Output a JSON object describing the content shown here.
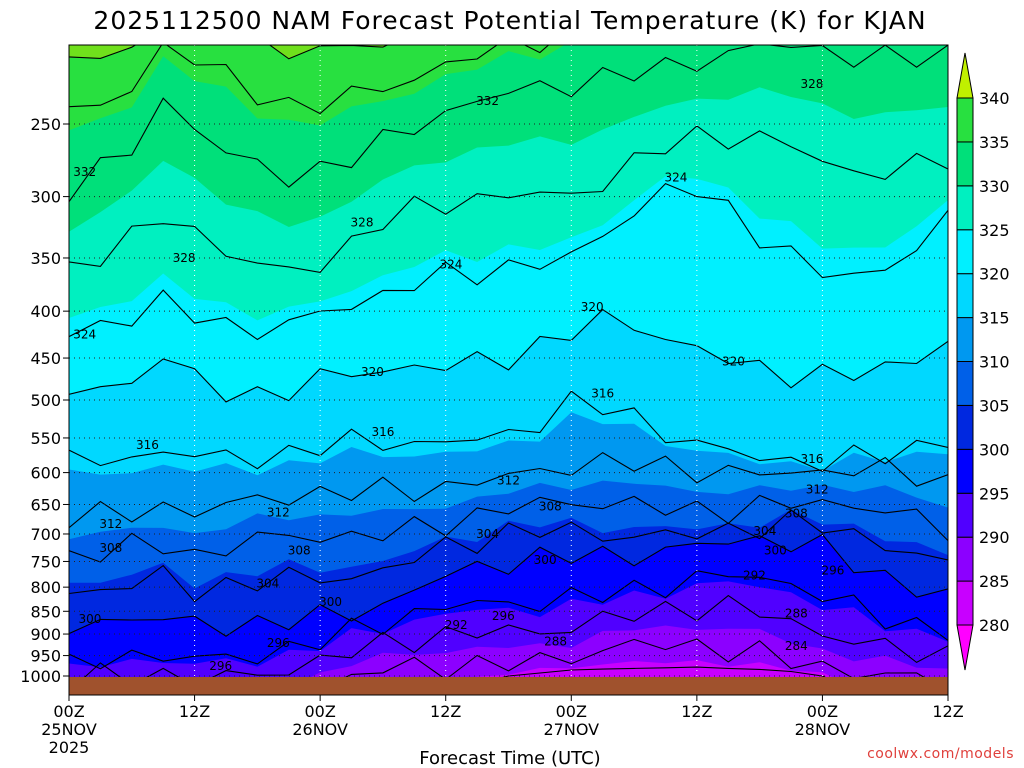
{
  "title": "2025112500 NAM Forecast Potential Temperature (K) for KJAN",
  "credit": "coolwx.com/models",
  "chart_data": {
    "type": "heatmap",
    "title": "2025112500 NAM Forecast Potential Temperature (K) for KJAN",
    "xlabel": "Forecast Time (UTC)",
    "ylabel": "",
    "x_ticks": [
      {
        "hours": 0,
        "line1": "00Z",
        "line2": "25NOV",
        "line3": "2025"
      },
      {
        "hours": 12,
        "line1": "12Z",
        "line2": "",
        "line3": ""
      },
      {
        "hours": 24,
        "line1": "00Z",
        "line2": "26NOV",
        "line3": ""
      },
      {
        "hours": 36,
        "line1": "12Z",
        "line2": "",
        "line3": ""
      },
      {
        "hours": 48,
        "line1": "00Z",
        "line2": "27NOV",
        "line3": ""
      },
      {
        "hours": 60,
        "line1": "12Z",
        "line2": "",
        "line3": ""
      },
      {
        "hours": 72,
        "line1": "00Z",
        "line2": "28NOV",
        "line3": ""
      },
      {
        "hours": 84,
        "line1": "12Z",
        "line2": "",
        "line3": ""
      }
    ],
    "xlim": [
      0,
      84
    ],
    "y_axis": "pressure (hPa), log scale, inverted",
    "y_ticks": [
      250,
      300,
      350,
      400,
      450,
      500,
      550,
      600,
      650,
      700,
      750,
      800,
      850,
      900,
      950,
      1000
    ],
    "ylim": [
      1025,
      200
    ],
    "colorbar": {
      "levels": [
        280,
        285,
        290,
        295,
        300,
        305,
        310,
        315,
        320,
        325,
        330,
        335,
        340
      ],
      "labels": [
        "280",
        "285",
        "290",
        "295",
        "300",
        "305",
        "310",
        "315",
        "320",
        "325",
        "330",
        "335",
        "340"
      ],
      "colors": [
        "#ff00ff",
        "#c800ff",
        "#8c00ff",
        "#5000ff",
        "#0000ff",
        "#0028e0",
        "#0060e8",
        "#0098f0",
        "#00d8ff",
        "#00f0ff",
        "#00f0c0",
        "#00e07a",
        "#28e040",
        "#70e01c",
        "#c0f000"
      ]
    },
    "contour_interval": 4,
    "contour_labels": [
      {
        "text": "332",
        "hours": 1.5,
        "p": 282
      },
      {
        "text": "332",
        "hours": 40,
        "p": 236
      },
      {
        "text": "328",
        "hours": 71,
        "p": 226
      },
      {
        "text": "328",
        "hours": 11,
        "p": 350
      },
      {
        "text": "328",
        "hours": 28,
        "p": 320
      },
      {
        "text": "324",
        "hours": 1.5,
        "p": 424
      },
      {
        "text": "324",
        "hours": 36.5,
        "p": 356
      },
      {
        "text": "324",
        "hours": 58,
        "p": 286
      },
      {
        "text": "320",
        "hours": 29,
        "p": 466
      },
      {
        "text": "320",
        "hours": 50,
        "p": 396
      },
      {
        "text": "320",
        "hours": 63.5,
        "p": 454
      },
      {
        "text": "316",
        "hours": 7.5,
        "p": 560
      },
      {
        "text": "316",
        "hours": 30,
        "p": 542
      },
      {
        "text": "316",
        "hours": 51,
        "p": 492
      },
      {
        "text": "316",
        "hours": 71,
        "p": 580
      },
      {
        "text": "312",
        "hours": 4,
        "p": 683
      },
      {
        "text": "312",
        "hours": 20,
        "p": 663
      },
      {
        "text": "312",
        "hours": 42,
        "p": 612
      },
      {
        "text": "312",
        "hours": 71.5,
        "p": 626
      },
      {
        "text": "308",
        "hours": 4,
        "p": 725
      },
      {
        "text": "308",
        "hours": 22,
        "p": 730
      },
      {
        "text": "308",
        "hours": 46,
        "p": 653
      },
      {
        "text": "308",
        "hours": 69.5,
        "p": 665
      },
      {
        "text": "304",
        "hours": 19,
        "p": 793
      },
      {
        "text": "304",
        "hours": 40,
        "p": 700
      },
      {
        "text": "304",
        "hours": 66.5,
        "p": 695
      },
      {
        "text": "300",
        "hours": 2,
        "p": 867
      },
      {
        "text": "300",
        "hours": 25,
        "p": 830
      },
      {
        "text": "300",
        "hours": 45.5,
        "p": 747
      },
      {
        "text": "300",
        "hours": 67.5,
        "p": 730
      },
      {
        "text": "296",
        "hours": 20,
        "p": 920
      },
      {
        "text": "296",
        "hours": 41.5,
        "p": 860
      },
      {
        "text": "296",
        "hours": 73,
        "p": 767
      },
      {
        "text": "292",
        "hours": 37,
        "p": 880
      },
      {
        "text": "292",
        "hours": 65.5,
        "p": 777
      },
      {
        "text": "296",
        "hours": 14.5,
        "p": 975
      },
      {
        "text": "288",
        "hours": 46.5,
        "p": 917
      },
      {
        "text": "288",
        "hours": 69.5,
        "p": 855
      },
      {
        "text": "284",
        "hours": 69.5,
        "p": 927
      }
    ]
  }
}
